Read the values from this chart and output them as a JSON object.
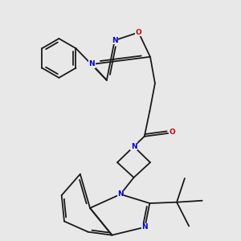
{
  "bg_color": "#e8e8e8",
  "bond_color": "#1a1a1a",
  "bond_width": 1.3,
  "atom_colors": {
    "N": "#0000cc",
    "O": "#cc0000",
    "C": "#1a1a1a"
  },
  "font_size_atom": 6.5
}
